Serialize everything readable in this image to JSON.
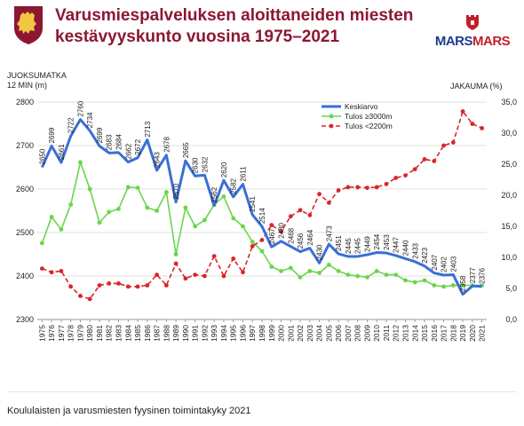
{
  "header": {
    "title_line1": "Varusmiespalveluksen aloittaneiden miesten",
    "title_line2": "kestävyyskunto vuosina 1975–2021",
    "brand_part1": "MARS",
    "brand_part2": "MARS",
    "logo_icon": "lion-shield-icon",
    "brand_icon": "castle-icon"
  },
  "axes": {
    "left_title_line1": "JUOKSUMATKA",
    "left_title_line2": "12 MIN (m)",
    "right_title": "JAKAUMA (%)"
  },
  "footer": {
    "caption": "Koululaisten ja varusmiesten fyysinen toimintakyky 2021"
  },
  "chart_data": {
    "type": "line",
    "x": [
      1975,
      1976,
      1977,
      1978,
      1979,
      1980,
      1981,
      1982,
      1983,
      1984,
      1985,
      1986,
      1987,
      1988,
      1989,
      1990,
      1991,
      1992,
      1993,
      1994,
      1995,
      1996,
      1997,
      1998,
      1999,
      2000,
      2001,
      2002,
      2003,
      2004,
      2005,
      2006,
      2007,
      2008,
      2009,
      2010,
      2011,
      2012,
      2013,
      2014,
      2015,
      2016,
      2017,
      2018,
      2019,
      2020,
      2021
    ],
    "y_left_lim": [
      2300,
      2800
    ],
    "y_left_ticks": [
      2300,
      2400,
      2500,
      2600,
      2700,
      2800
    ],
    "y_right_lim": [
      0,
      35
    ],
    "y_right_ticks": [
      "0,0",
      "5,0",
      "10,0",
      "15,0",
      "20,0",
      "25,0",
      "30,0",
      "35,0"
    ],
    "legend_position": "top-right",
    "colors": {
      "mean": "#3a6fd6",
      "green": "#6ad64a",
      "red": "#d8262a"
    },
    "series": [
      {
        "name": "Keskiarvo",
        "axis": "left",
        "values": [
          2650,
          2699,
          2661,
          2722,
          2760,
          2734,
          2699,
          2683,
          2684,
          2662,
          2672,
          2713,
          2643,
          2678,
          2570,
          2665,
          2630,
          2632,
          2562,
          2620,
          2582,
          2611,
          2541,
          2514,
          2467,
          2480,
          2468,
          2456,
          2464,
          2430,
          2473,
          2451,
          2445,
          2445,
          2449,
          2454,
          2453,
          2447,
          2440,
          2433,
          2423,
          2407,
          2402,
          2403,
          2358,
          2377,
          2376
        ],
        "labels": [
          "2650",
          "2699",
          "2661",
          "2722",
          "2760",
          "2734",
          "2699",
          "2683",
          "2684",
          "2662",
          "2672",
          "2713",
          "2643",
          "2678",
          "2570",
          "2665",
          "2630",
          "2632",
          "2562",
          "2620",
          "2582",
          "2611",
          "2541",
          "2514",
          "2467",
          "2480",
          "2468",
          "2456",
          "2464",
          "2430",
          "2473",
          "2451",
          "2445",
          "2445",
          "2449",
          "2454",
          "2453",
          "2447",
          "2440",
          "2433",
          "2423",
          "2407",
          "2402",
          "2403",
          "2358",
          "2377",
          "2376"
        ]
      },
      {
        "name": "Tulos ≥3000m",
        "axis": "right",
        "values": [
          12.3,
          16.5,
          14.5,
          18.5,
          25.3,
          21.0,
          15.6,
          17.3,
          17.8,
          21.3,
          21.2,
          18.0,
          17.5,
          20.5,
          10.5,
          18.0,
          15.0,
          16.0,
          18.5,
          19.8,
          16.3,
          15.0,
          12.5,
          11.0,
          8.5,
          7.8,
          8.3,
          6.8,
          7.8,
          7.5,
          8.8,
          7.8,
          7.2,
          7.0,
          6.8,
          7.8,
          7.2,
          7.2,
          6.3,
          6.0,
          6.3,
          5.5,
          5.3,
          5.5,
          5.5,
          5.5,
          5.5
        ]
      },
      {
        "name": "Tulos <2200m",
        "axis": "right",
        "values": [
          8.2,
          7.6,
          7.8,
          5.3,
          3.8,
          3.3,
          5.5,
          5.8,
          5.8,
          5.3,
          5.3,
          5.5,
          7.2,
          5.5,
          9.0,
          6.6,
          7.2,
          7.0,
          10.2,
          7.0,
          9.8,
          7.6,
          11.8,
          12.8,
          15.2,
          14.2,
          16.6,
          17.6,
          16.8,
          20.2,
          18.8,
          20.8,
          21.3,
          21.3,
          21.2,
          21.3,
          21.8,
          22.8,
          23.2,
          24.2,
          25.8,
          25.5,
          28.0,
          28.5,
          33.5,
          31.5,
          30.8
        ]
      }
    ]
  }
}
